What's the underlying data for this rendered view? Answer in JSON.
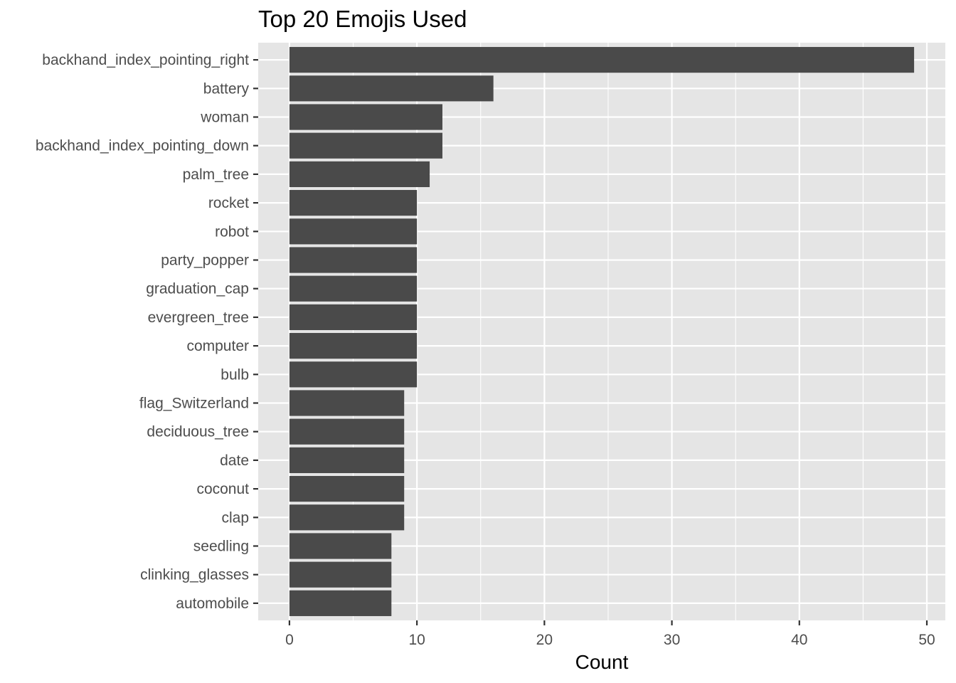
{
  "chart_data": {
    "type": "bar",
    "orientation": "horizontal",
    "title": "Top 20 Emojis Used",
    "xlabel": "Count",
    "ylabel": "",
    "xlim": [
      -2.45,
      51.45
    ],
    "x_ticks": [
      0,
      10,
      20,
      30,
      40,
      50
    ],
    "grid": true,
    "legend": "none",
    "colors": {
      "panel_background": "#e5e5e5",
      "grid_line": "#ffffff",
      "bar_fill": "#4a4a4a",
      "tick_label": "#4d4d4d",
      "title": "#000000"
    },
    "categories": [
      "backhand_index_pointing_right",
      "battery",
      "woman",
      "backhand_index_pointing_down",
      "palm_tree",
      "rocket",
      "robot",
      "party_popper",
      "graduation_cap",
      "evergreen_tree",
      "computer",
      "bulb",
      "flag_Switzerland",
      "deciduous_tree",
      "date",
      "coconut",
      "clap",
      "seedling",
      "clinking_glasses",
      "automobile"
    ],
    "values": [
      49,
      16,
      12,
      12,
      11,
      10,
      10,
      10,
      10,
      10,
      10,
      10,
      9,
      9,
      9,
      9,
      9,
      8,
      8,
      8
    ]
  }
}
